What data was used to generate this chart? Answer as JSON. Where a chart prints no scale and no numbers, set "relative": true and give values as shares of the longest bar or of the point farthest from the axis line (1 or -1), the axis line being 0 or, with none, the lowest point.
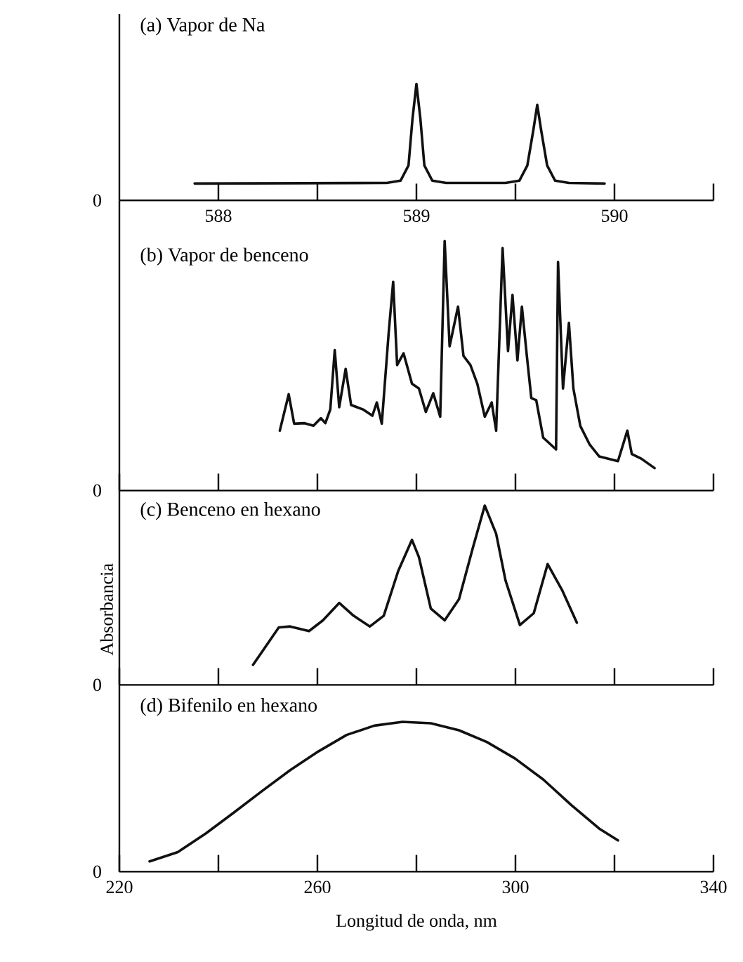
{
  "chart_data": [
    {
      "type": "line",
      "title": "(a) Vapor de Na",
      "relative": true,
      "color": "#111111",
      "annotations": [
        "0"
      ],
      "xlim": [
        587.5,
        590.5
      ],
      "xticks": [
        588,
        {
          "value": 588.5,
          "label": null
        },
        589,
        {
          "value": 589.5,
          "label": null
        },
        590,
        {
          "value": 590.5,
          "label": null
        }
      ],
      "x": [
        587.88,
        588.85,
        588.92,
        588.96,
        588.98,
        589.0,
        589.02,
        589.04,
        589.08,
        589.15,
        589.45,
        589.52,
        589.56,
        589.59,
        589.61,
        589.63,
        589.66,
        589.7,
        589.77,
        589.95
      ],
      "values": [
        0.145,
        0.15,
        0.17,
        0.3,
        0.7,
        1,
        0.7,
        0.3,
        0.17,
        0.15,
        0.15,
        0.17,
        0.3,
        0.6,
        0.82,
        0.6,
        0.3,
        0.17,
        0.15,
        0.145
      ]
    },
    {
      "type": "line",
      "title": "(b) Vapor de benceno",
      "relative": true,
      "color": "#111111",
      "annotations": [
        "0"
      ],
      "tick_labels": false,
      "xlim": [
        220,
        340
      ],
      "xticks": [
        220,
        240,
        260,
        280,
        300,
        320,
        340
      ],
      "x": [
        252.4,
        254.2,
        255.3,
        257.4,
        259.2,
        260.7,
        261.6,
        262.6,
        263.5,
        264.4,
        265.7,
        266.8,
        269.2,
        271.1,
        272.0,
        273.0,
        274.4,
        275.3,
        276.1,
        277.4,
        279.1,
        280.5,
        281.9,
        283.4,
        284.8,
        285.7,
        286.7,
        288.4,
        289.5,
        290.9,
        292.3,
        293.8,
        295.2,
        296.1,
        297.4,
        298.5,
        299.4,
        300.4,
        301.3,
        302.3,
        303.2,
        304.2,
        305.6,
        308.2,
        308.6,
        309.6,
        310.8,
        311.7,
        313.1,
        315.0,
        316.9,
        320.7,
        322.6,
        323.5,
        325.4,
        328.1
      ],
      "values": [
        0.24,
        0.386,
        0.268,
        0.27,
        0.26,
        0.29,
        0.27,
        0.325,
        0.563,
        0.334,
        0.488,
        0.343,
        0.325,
        0.3,
        0.353,
        0.268,
        0.634,
        0.837,
        0.503,
        0.55,
        0.428,
        0.409,
        0.315,
        0.39,
        0.296,
        1.0,
        0.578,
        0.737,
        0.54,
        0.503,
        0.428,
        0.296,
        0.353,
        0.24,
        0.972,
        0.559,
        0.784,
        0.522,
        0.737,
        0.54,
        0.371,
        0.362,
        0.212,
        0.165,
        0.916,
        0.409,
        0.672,
        0.409,
        0.259,
        0.184,
        0.137,
        0.118,
        0.24,
        0.146,
        0.128,
        0.09
      ]
    },
    {
      "type": "line",
      "title": "(c) Benceno en hexano",
      "ylabel": "Absorbancia",
      "relative": true,
      "color": "#111111",
      "annotations": [
        "0"
      ],
      "tick_labels": false,
      "xlim": [
        220,
        340
      ],
      "xticks": [
        220,
        240,
        260,
        280,
        300,
        320,
        340
      ],
      "x": [
        247.0,
        249.3,
        252.2,
        254.5,
        258.3,
        261.1,
        264.4,
        267.3,
        270.6,
        273.4,
        276.3,
        279.1,
        280.5,
        282.9,
        285.7,
        288.6,
        291.4,
        293.8,
        296.1,
        298.0,
        300.9,
        303.7,
        306.5,
        309.4,
        312.4
      ],
      "values": [
        0.112,
        0.204,
        0.321,
        0.326,
        0.3,
        0.36,
        0.457,
        0.386,
        0.326,
        0.386,
        0.634,
        0.809,
        0.713,
        0.426,
        0.36,
        0.478,
        0.765,
        1.0,
        0.843,
        0.582,
        0.334,
        0.4,
        0.674,
        0.53,
        0.347
      ]
    },
    {
      "type": "line",
      "title": "(d) Bifenilo en hexano",
      "xlabel": "Longitud de onda, nm",
      "relative": true,
      "color": "#111111",
      "annotations": [
        "0"
      ],
      "xlim": [
        220,
        340
      ],
      "xticks": [
        220,
        {
          "value": 240,
          "label": null
        },
        260,
        {
          "value": 280,
          "label": null
        },
        300,
        {
          "value": 320,
          "label": null
        },
        340
      ],
      "x": [
        226.1,
        231.8,
        237.5,
        243.2,
        248.8,
        254.5,
        260.2,
        265.9,
        271.5,
        277.2,
        282.9,
        288.6,
        294.2,
        299.9,
        305.6,
        311.3,
        316.9,
        320.7
      ],
      "values": [
        0.069,
        0.131,
        0.256,
        0.397,
        0.538,
        0.678,
        0.803,
        0.913,
        0.975,
        1.0,
        0.991,
        0.944,
        0.866,
        0.756,
        0.616,
        0.444,
        0.288,
        0.209
      ]
    }
  ]
}
